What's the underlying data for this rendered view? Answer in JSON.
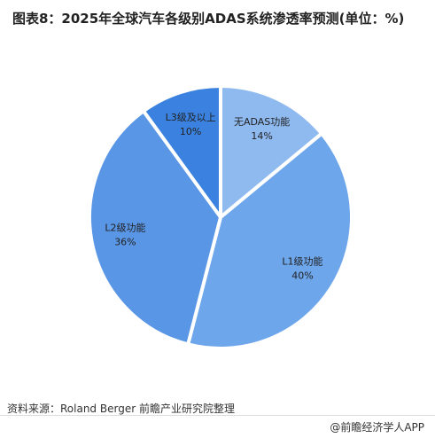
{
  "chart_data": {
    "type": "pie",
    "title": "图表8：2025年全球汽车各级别ADAS系统渗透率预测(单位：%)",
    "categories": [
      "无ADAS功能",
      "L1级功能",
      "L2级功能",
      "L3级及以上"
    ],
    "values": [
      14,
      40,
      36,
      10
    ],
    "value_labels": [
      "14%",
      "40%",
      "36%",
      "10%"
    ],
    "colors": [
      "#8fbaf0",
      "#6ea6ec",
      "#5a96e6",
      "#3b82e0"
    ],
    "source": "资料来源：Roland Berger 前瞻产业研究院整理",
    "footer": "@前瞻经济学人APP"
  }
}
